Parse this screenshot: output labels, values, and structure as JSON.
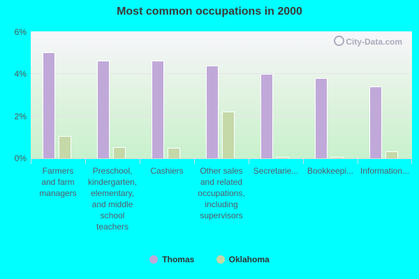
{
  "chart_data": {
    "type": "bar",
    "title": "Most common occupations in 2000",
    "xlabel": "",
    "ylabel": "",
    "ylim": [
      0,
      6
    ],
    "yticks": [
      "0%",
      "2%",
      "4%",
      "6%"
    ],
    "grid": true,
    "legend_position": "bottom",
    "categories": [
      "Farmers and farm managers",
      "Preschool, kindergarten, elementary, and middle school teachers",
      "Cashiers",
      "Other sales and related occupations, including supervisors",
      "Secretaries...",
      "Bookkeeping...",
      "Information..."
    ],
    "category_labels_display": [
      "Farmers\nand farm\nmanagers",
      "Preschool,\nkindergarten,\nelementary,\nand middle\nschool\nteachers",
      "Cashiers",
      "Other sales\nand related\noccupations,\nincluding\nsupervisors",
      "Secretarie...",
      "Bookkeepi...",
      "Information..."
    ],
    "series": [
      {
        "name": "Thomas",
        "color": "#c0a9d9",
        "values": [
          5.0,
          4.6,
          4.6,
          4.4,
          4.0,
          3.8,
          3.4
        ]
      },
      {
        "name": "Oklahoma",
        "color": "#c4d8a8",
        "values": [
          1.05,
          0.53,
          0.5,
          2.2,
          0.08,
          0.08,
          0.33
        ]
      }
    ],
    "units": "%",
    "watermark": "City-Data.com"
  },
  "legend": {
    "items": [
      {
        "label": "Thomas",
        "color": "#c0a9d9"
      },
      {
        "label": "Oklahoma",
        "color": "#c4d8a8"
      }
    ]
  }
}
